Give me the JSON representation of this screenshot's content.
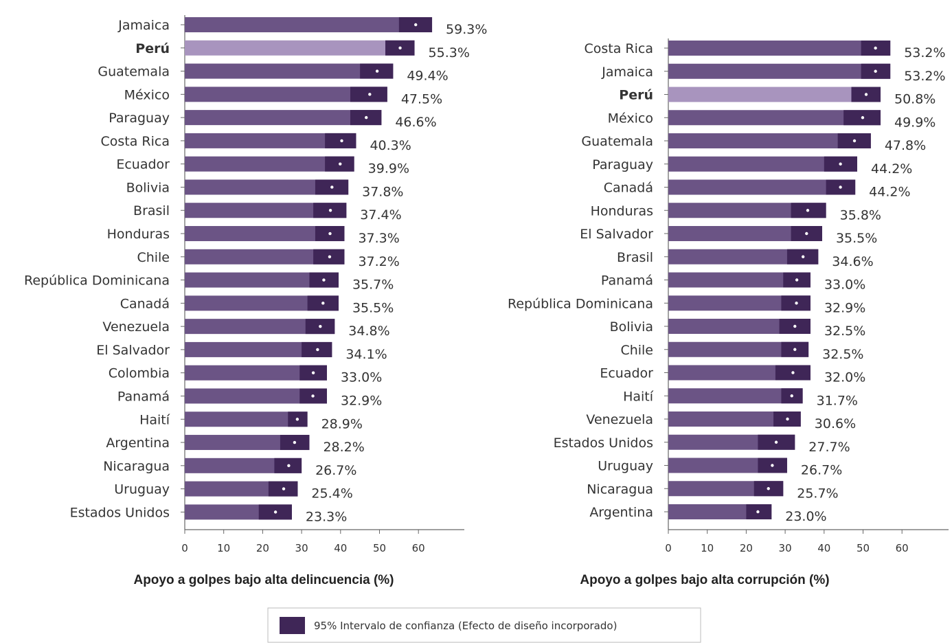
{
  "colors": {
    "bar": "#6b5485",
    "bar_highlight": "#a894be",
    "ci": "#3f2657",
    "point": "#ffffff",
    "axis": "#666666"
  },
  "legend": {
    "label": "95% Intervalo de confianza (Efecto de diseño incorporado)"
  },
  "chart_data": [
    {
      "type": "bar",
      "orientation": "horizontal",
      "xlabel": "Apoyo a golpes bajo alta delincuencia (%)",
      "xlim": [
        0,
        70
      ],
      "xticks": [
        0,
        10,
        20,
        30,
        40,
        50,
        60
      ],
      "highlight": "Perú",
      "categories": [
        "Jamaica",
        "Perú",
        "Guatemala",
        "México",
        "Paraguay",
        "Costa Rica",
        "Ecuador",
        "Bolivia",
        "Brasil",
        "Honduras",
        "Chile",
        "República Dominicana",
        "Canadá",
        "Venezuela",
        "El Salvador",
        "Colombia",
        "Panamá",
        "Haití",
        "Argentina",
        "Nicaragua",
        "Uruguay",
        "Estados Unidos"
      ],
      "values": [
        59.3,
        55.3,
        49.4,
        47.5,
        46.6,
        40.3,
        39.9,
        37.8,
        37.4,
        37.3,
        37.2,
        35.7,
        35.5,
        34.8,
        34.1,
        33.0,
        32.9,
        28.9,
        28.2,
        26.7,
        25.4,
        23.3
      ],
      "labels": [
        "59.3%",
        "55.3%",
        "49.4%",
        "47.5%",
        "46.6%",
        "40.3%",
        "39.9%",
        "37.8%",
        "37.4%",
        "37.3%",
        "37.2%",
        "35.7%",
        "35.5%",
        "34.8%",
        "34.1%",
        "33.0%",
        "32.9%",
        "28.9%",
        "28.2%",
        "26.7%",
        "25.4%",
        "23.3%"
      ],
      "ci_lower": [
        55.0,
        51.5,
        45.0,
        42.5,
        42.5,
        36.0,
        36.0,
        33.5,
        33.0,
        33.5,
        33.0,
        32.0,
        31.5,
        31.0,
        30.0,
        29.5,
        29.5,
        26.5,
        24.5,
        23.0,
        21.5,
        19.0
      ],
      "ci_upper": [
        63.5,
        59.0,
        53.5,
        52.0,
        50.5,
        44.0,
        43.5,
        42.0,
        41.5,
        41.0,
        41.0,
        39.5,
        39.5,
        38.5,
        37.8,
        36.5,
        36.5,
        31.5,
        32.0,
        30.0,
        29.0,
        27.5
      ]
    },
    {
      "type": "bar",
      "orientation": "horizontal",
      "xlabel": "Apoyo a golpes bajo alta corrupción (%)",
      "xlim": [
        0,
        72
      ],
      "xticks": [
        0,
        10,
        20,
        30,
        40,
        50,
        60
      ],
      "highlight": "Perú",
      "categories": [
        "Costa Rica",
        "Jamaica",
        "Perú",
        "México",
        "Guatemala",
        "Paraguay",
        "Canadá",
        "Honduras",
        "El Salvador",
        "Brasil",
        "Panamá",
        "República Dominicana",
        "Bolivia",
        "Chile",
        "Ecuador",
        "Haití",
        "Venezuela",
        "Estados Unidos",
        "Uruguay",
        "Nicaragua",
        "Argentina"
      ],
      "values": [
        53.2,
        53.2,
        50.8,
        49.9,
        47.8,
        44.2,
        44.2,
        35.8,
        35.5,
        34.6,
        33.0,
        32.9,
        32.5,
        32.5,
        32.0,
        31.7,
        30.6,
        27.7,
        26.7,
        25.7,
        23.0
      ],
      "labels": [
        "53.2%",
        "53.2%",
        "50.8%",
        "49.9%",
        "47.8%",
        "44.2%",
        "44.2%",
        "35.8%",
        "35.5%",
        "34.6%",
        "33.0%",
        "32.9%",
        "32.5%",
        "32.5%",
        "32.0%",
        "31.7%",
        "30.6%",
        "27.7%",
        "26.7%",
        "25.7%",
        "23.0%"
      ],
      "ci_lower": [
        49.5,
        49.5,
        47.0,
        45.0,
        43.5,
        40.0,
        40.5,
        31.5,
        31.5,
        30.5,
        29.5,
        29.0,
        28.5,
        29.0,
        27.5,
        29.0,
        27.0,
        23.0,
        23.0,
        22.0,
        20.0
      ],
      "ci_upper": [
        57.0,
        57.0,
        54.5,
        54.5,
        52.0,
        48.5,
        48.0,
        40.5,
        39.5,
        38.5,
        36.5,
        36.5,
        36.5,
        36.0,
        36.5,
        34.5,
        34.0,
        32.5,
        30.5,
        29.5,
        26.5
      ]
    }
  ]
}
